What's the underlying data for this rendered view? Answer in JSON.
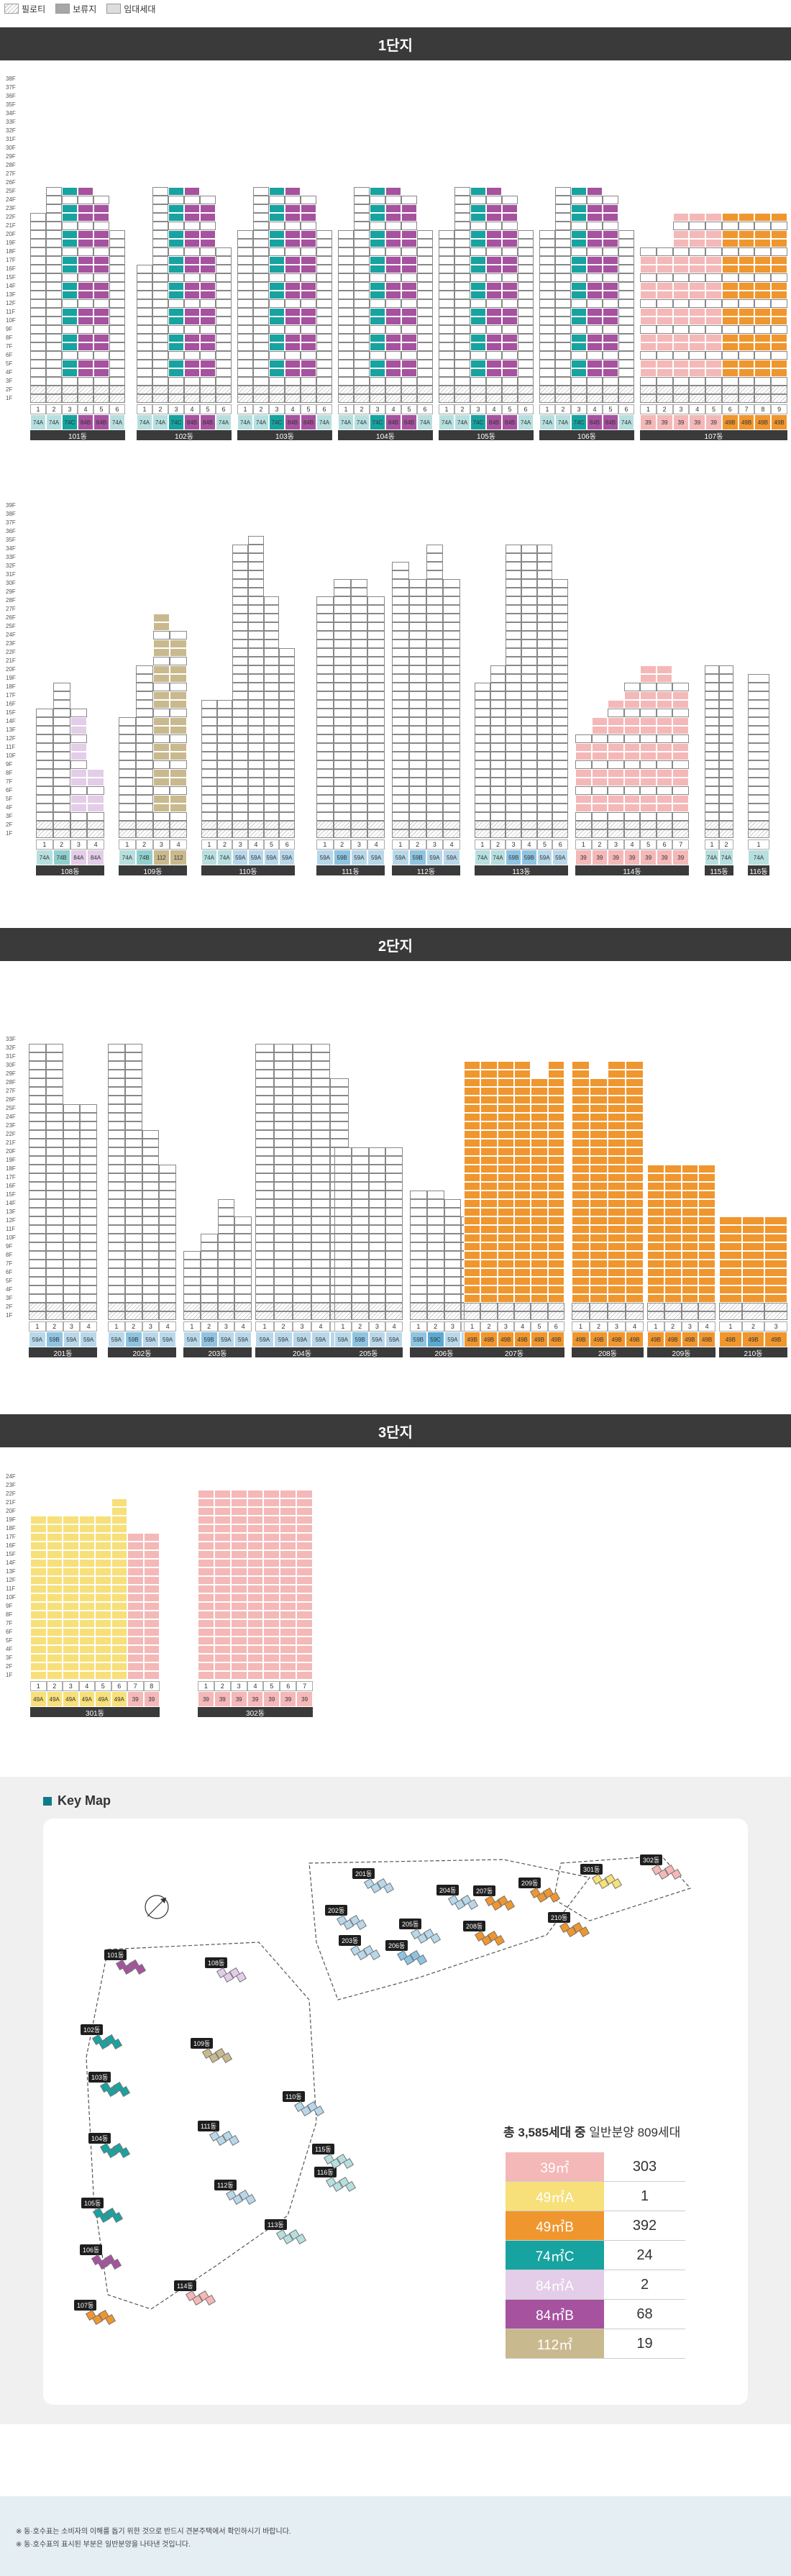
{
  "legend": [
    {
      "label": "필로티",
      "type": "piloti"
    },
    {
      "label": "보류지",
      "type": "reserve"
    },
    {
      "label": "임대세대",
      "type": "rental"
    }
  ],
  "colors": {
    "39": "#f4b8b8",
    "49A": "#f7e07a",
    "49B": "#f0962e",
    "74C": "#17a3a0",
    "84A": "#e3cde8",
    "84B": "#a6529f",
    "112": "#c9b98e",
    "59A": "#b8d8ea",
    "59B": "#8ec4e2",
    "59C": "#5aa9d2",
    "74A": "#b7dfdf",
    "74B": "#8fd0cf",
    "84": "#e3cde8"
  },
  "sections": [
    {
      "title": "1단지"
    },
    {
      "title": "2단지"
    },
    {
      "title": "3단지"
    }
  ],
  "buildings": {
    "d1_row1": [
      {
        "name": "101동",
        "units": [
          "1",
          "2",
          "3",
          "4",
          "5",
          "6"
        ],
        "types": [
          "74A",
          "74A",
          "74C",
          "84B",
          "84B",
          "74A"
        ]
      },
      {
        "name": "102동",
        "units": [
          "1",
          "2",
          "3",
          "4",
          "5",
          "6"
        ],
        "types": [
          "74A",
          "74A",
          "74C",
          "84B",
          "84B",
          "74A"
        ]
      },
      {
        "name": "103동",
        "units": [
          "1",
          "2",
          "3",
          "4",
          "5",
          "6"
        ],
        "types": [
          "74A",
          "74A",
          "74C",
          "84B",
          "84B",
          "74A"
        ]
      },
      {
        "name": "104동",
        "units": [
          "1",
          "2",
          "3",
          "4",
          "5",
          "6"
        ],
        "types": [
          "74A",
          "74A",
          "74C",
          "84B",
          "84B",
          "74A"
        ]
      },
      {
        "name": "105동",
        "units": [
          "1",
          "2",
          "3",
          "4",
          "5",
          "6"
        ],
        "types": [
          "74A",
          "74A",
          "74C",
          "84B",
          "84B",
          "74A"
        ]
      },
      {
        "name": "106동",
        "units": [
          "1",
          "2",
          "3",
          "4",
          "5",
          "6"
        ],
        "types": [
          "74A",
          "74A",
          "74C",
          "84B",
          "84B",
          "74A"
        ]
      },
      {
        "name": "107동",
        "units": [
          "1",
          "2",
          "3",
          "4",
          "5",
          "6",
          "7",
          "8",
          "9"
        ],
        "types": [
          "39",
          "39",
          "39",
          "39",
          "39",
          "49B",
          "49B",
          "49B",
          "49B"
        ]
      }
    ],
    "d1_row2": [
      {
        "name": "108동",
        "units": [
          "1",
          "2",
          "3",
          "4"
        ],
        "types": [
          "74A",
          "74B",
          "84A",
          "84A"
        ]
      },
      {
        "name": "109동",
        "units": [
          "1",
          "2",
          "3",
          "4"
        ],
        "types": [
          "74A",
          "74B",
          "112",
          "112"
        ]
      },
      {
        "name": "110동",
        "units": [
          "1",
          "2",
          "3",
          "4",
          "5",
          "6"
        ],
        "types": [
          "74A",
          "74A",
          "59A",
          "59A",
          "59A",
          "59A"
        ]
      },
      {
        "name": "111동",
        "units": [
          "1",
          "2",
          "3",
          "4"
        ],
        "types": [
          "59A",
          "59B",
          "59A",
          "59A"
        ]
      },
      {
        "name": "112동",
        "units": [
          "1",
          "2",
          "3",
          "4"
        ],
        "types": [
          "59A",
          "59B",
          "59A",
          "59A"
        ]
      },
      {
        "name": "113동",
        "units": [
          "1",
          "2",
          "3",
          "4",
          "5",
          "6"
        ],
        "types": [
          "74A",
          "74A",
          "59B",
          "59B",
          "59A",
          "59A"
        ]
      },
      {
        "name": "114동",
        "units": [
          "1",
          "2",
          "3",
          "4",
          "5",
          "6",
          "7"
        ],
        "types": [
          "39",
          "39",
          "39",
          "39",
          "39",
          "39",
          "39"
        ]
      },
      {
        "name": "115동",
        "units": [
          "1",
          "2"
        ],
        "types": [
          "74A",
          "74A"
        ]
      },
      {
        "name": "116동",
        "units": [
          "1"
        ],
        "types": [
          "74A"
        ]
      }
    ],
    "d2": [
      {
        "name": "201동",
        "units": [
          "1",
          "2",
          "3",
          "4"
        ],
        "types": [
          "59A",
          "59B",
          "59A",
          "59A"
        ]
      },
      {
        "name": "202동",
        "units": [
          "1",
          "2",
          "3",
          "4"
        ],
        "types": [
          "59A",
          "59B",
          "59A",
          "59A"
        ]
      },
      {
        "name": "203동",
        "units": [
          "1",
          "2",
          "3",
          "4"
        ],
        "types": [
          "59A",
          "59B",
          "59A",
          "59A"
        ]
      },
      {
        "name": "204동",
        "units": [
          "1",
          "2",
          "3",
          "4",
          "5"
        ],
        "types": [
          "59A",
          "59A",
          "59A",
          "59A",
          "59A"
        ]
      },
      {
        "name": "205동",
        "units": [
          "1",
          "2",
          "3",
          "4"
        ],
        "types": [
          "59A",
          "59B",
          "59A",
          "59A"
        ]
      },
      {
        "name": "206동",
        "units": [
          "1",
          "2",
          "3",
          "4"
        ],
        "types": [
          "59B",
          "59C",
          "59A",
          "59A"
        ]
      },
      {
        "name": "207동",
        "units": [
          "1",
          "2",
          "3",
          "4",
          "5",
          "6"
        ],
        "types": [
          "49B",
          "49B",
          "49B",
          "49B",
          "49B",
          "49B"
        ]
      },
      {
        "name": "208동",
        "units": [
          "1",
          "2",
          "3",
          "4"
        ],
        "types": [
          "49B",
          "49B",
          "49B",
          "49B"
        ]
      },
      {
        "name": "209동",
        "units": [
          "1",
          "2",
          "3",
          "4"
        ],
        "types": [
          "49B",
          "49B",
          "49B",
          "49B"
        ]
      },
      {
        "name": "210동",
        "units": [
          "1",
          "2",
          "3"
        ],
        "types": [
          "49B",
          "49B",
          "49B"
        ]
      }
    ],
    "d3": [
      {
        "name": "301동",
        "units": [
          "1",
          "2",
          "3",
          "4",
          "5",
          "6",
          "7",
          "8"
        ],
        "types": [
          "49A",
          "49A",
          "49A",
          "49A",
          "49A",
          "49A",
          "39",
          "39"
        ]
      },
      {
        "name": "302동",
        "units": [
          "1",
          "2",
          "3",
          "4",
          "5",
          "6",
          "7"
        ],
        "types": [
          "39",
          "39",
          "39",
          "39",
          "39",
          "39",
          "39"
        ]
      }
    ]
  },
  "keymap": {
    "title": "Key Map",
    "labels": [
      "101동",
      "102동",
      "103동",
      "104동",
      "105동",
      "106동",
      "107동",
      "108동",
      "109동",
      "110동",
      "111동",
      "112동",
      "113동",
      "114동",
      "115동",
      "116동",
      "201동",
      "202동",
      "203동",
      "204동",
      "205동",
      "206동",
      "207동",
      "208동",
      "209동",
      "210동",
      "301동",
      "302동"
    ]
  },
  "summary": {
    "title_bold": "총 3,585세대 중",
    "title_rest": " 일반분양 809세대",
    "rows": [
      {
        "type": "39㎡",
        "count": "303",
        "color": "#f4b8b8"
      },
      {
        "type": "49㎡A",
        "count": "1",
        "color": "#f7e07a"
      },
      {
        "type": "49㎡B",
        "count": "392",
        "color": "#f0962e"
      },
      {
        "type": "74㎡C",
        "count": "24",
        "color": "#17a3a0"
      },
      {
        "type": "84㎡A",
        "count": "2",
        "color": "#e3cde8"
      },
      {
        "type": "84㎡B",
        "count": "68",
        "color": "#a6529f"
      },
      {
        "type": "112㎡",
        "count": "19",
        "color": "#c9b98e"
      }
    ]
  },
  "footer": {
    "notes": [
      "※ 동·호수표는 소비자의 이해를 돕기 위한 것으로 반드시 견본주택에서 확인하시기 바랍니다.",
      "※ 동·호수표의 표시된 부분은 일반분양을 나타낸 것입니다."
    ]
  }
}
